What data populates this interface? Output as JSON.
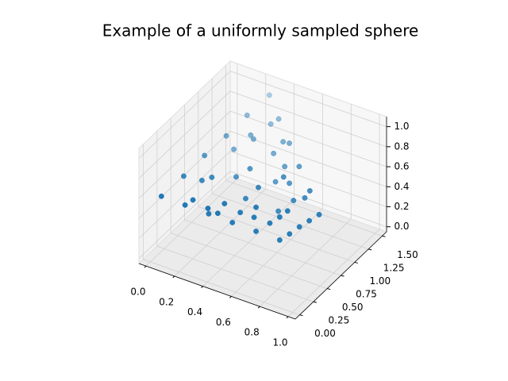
{
  "chart_data": {
    "type": "scatter3d",
    "title": "Example of a uniformly sampled sphere",
    "color": "#1f77b4",
    "xlim": [
      -0.05,
      1.05
    ],
    "ylim": [
      -0.08,
      1.58
    ],
    "zlim": [
      -0.05,
      1.1
    ],
    "xticks": [
      {
        "value": 0,
        "label": "0.0"
      },
      {
        "value": 0.2,
        "label": "0.2"
      },
      {
        "value": 0.4,
        "label": "0.4"
      },
      {
        "value": 0.6,
        "label": "0.6"
      },
      {
        "value": 0.8,
        "label": "0.8"
      },
      {
        "value": 1,
        "label": "1.0"
      }
    ],
    "yticks": [
      {
        "value": 0,
        "label": "0.00"
      },
      {
        "value": 0.25,
        "label": "0.25"
      },
      {
        "value": 0.5,
        "label": "0.50"
      },
      {
        "value": 0.75,
        "label": "0.75"
      },
      {
        "value": 1,
        "label": "1.00"
      },
      {
        "value": 1.25,
        "label": "1.25"
      },
      {
        "value": 1.5,
        "label": "1.50"
      }
    ],
    "zticks": [
      {
        "value": 0,
        "label": "0.0"
      },
      {
        "value": 0.2,
        "label": "0.2"
      },
      {
        "value": 0.4,
        "label": "0.4"
      },
      {
        "value": 0.6,
        "label": "0.6"
      },
      {
        "value": 0.8,
        "label": "0.8"
      },
      {
        "value": 1,
        "label": "1.0"
      }
    ],
    "grid": true,
    "x": [
      0.28,
      0.0,
      0.6,
      0.8,
      0.22,
      0.17,
      0.11,
      0.06,
      0.34,
      0.41,
      0.47,
      0.54,
      0.38,
      0.49,
      0.59,
      0.7,
      0.12,
      0.24,
      0.36,
      0.48,
      0.65,
      0.7,
      0.75,
      0.16,
      0.32,
      0.48,
      0.64,
      0.29,
      0.36,
      0.56,
      0.47,
      0.2,
      0.38,
      0.15,
      0.3,
      0.28,
      0.45,
      0.2,
      0.55,
      0.45,
      0.62,
      0.68,
      0.5,
      0.3,
      0.55,
      0.6,
      0.4,
      0.25
    ],
    "y": [
      1.44,
      0.2,
      0.8,
      1.0,
      1.19,
      0.94,
      0.7,
      0.45,
      1.31,
      1.18,
      1.06,
      0.93,
      1.35,
      1.26,
      1.18,
      1.09,
      0.32,
      0.44,
      0.56,
      0.68,
      0.85,
      0.9,
      0.95,
      0.36,
      0.52,
      0.68,
      0.84,
      0.81,
      0.88,
      1.08,
      0.67,
      1.0,
      0.75,
      0.55,
      1.1,
      1.1,
      0.8,
      0.6,
      1.0,
      1.25,
      1.0,
      1.05,
      1.15,
      0.45,
      0.75,
      0.8,
      0.6,
      0.4
    ],
    "z": [
      1.0,
      0.5,
      0.05,
      0.3,
      0.9,
      0.8,
      0.7,
      0.6,
      0.81,
      0.62,
      0.43,
      0.24,
      0.86,
      0.72,
      0.58,
      0.44,
      0.41,
      0.32,
      0.23,
      0.14,
      0.11,
      0.18,
      0.24,
      0.46,
      0.42,
      0.38,
      0.34,
      0.52,
      0.6,
      0.45,
      0.28,
      0.65,
      0.38,
      0.55,
      0.75,
      0.78,
      0.5,
      0.58,
      0.55,
      0.72,
      0.35,
      0.38,
      0.55,
      0.35,
      0.22,
      0.28,
      0.33,
      0.4
    ]
  }
}
